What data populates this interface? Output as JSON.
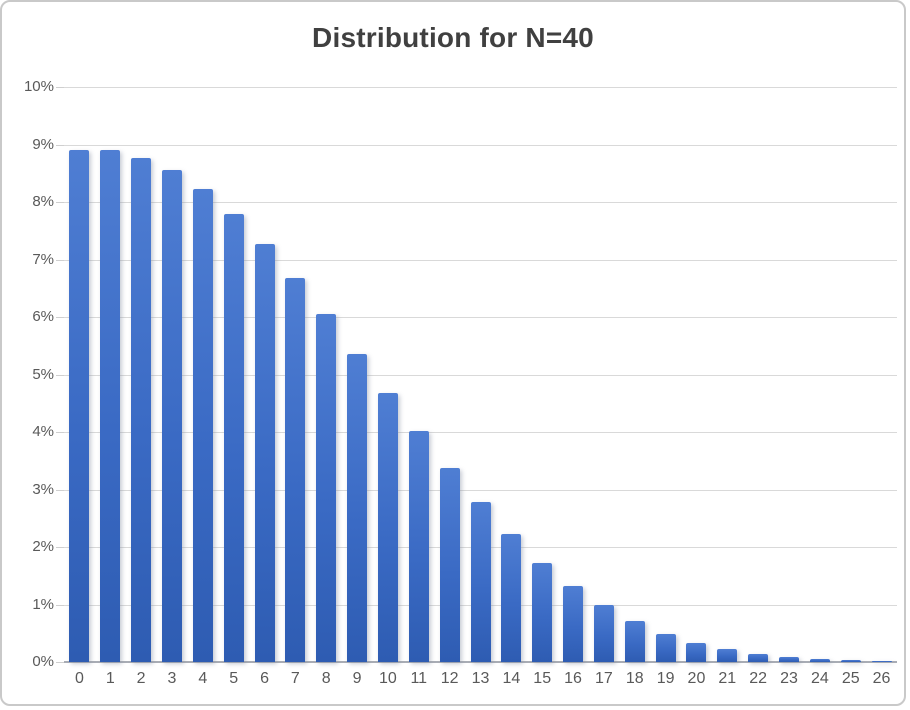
{
  "chart_data": {
    "type": "bar",
    "title": "Distribution for N=40",
    "categories": [
      "0",
      "1",
      "2",
      "3",
      "4",
      "5",
      "6",
      "7",
      "8",
      "9",
      "10",
      "11",
      "12",
      "13",
      "14",
      "15",
      "16",
      "17",
      "18",
      "19",
      "20",
      "21",
      "22",
      "23",
      "24",
      "25",
      "26"
    ],
    "values": [
      8.9,
      8.9,
      8.77,
      8.55,
      8.22,
      7.79,
      7.27,
      6.68,
      6.05,
      5.36,
      4.68,
      4.01,
      3.37,
      2.78,
      2.22,
      1.72,
      1.32,
      0.99,
      0.72,
      0.49,
      0.33,
      0.22,
      0.14,
      0.08,
      0.05,
      0.03,
      0.01
    ],
    "xlabel": "",
    "ylabel": "",
    "ylim": [
      0,
      10
    ],
    "y_tick_step": 1,
    "y_tick_labels": [
      "0%",
      "1%",
      "2%",
      "3%",
      "4%",
      "5%",
      "6%",
      "7%",
      "8%",
      "9%",
      "10%"
    ],
    "grid": "horizontal",
    "legend_position": "none",
    "colors": {
      "bar_gradient_top": "#4f7ed3",
      "bar_gradient_bottom": "#2e5cb2",
      "gridline": "#d9d9d9",
      "axis_baseline": "#a9adb5",
      "tick_label": "#595959",
      "title": "#404040",
      "window_border": "#c9c9c9",
      "background": "#ffffff"
    }
  }
}
